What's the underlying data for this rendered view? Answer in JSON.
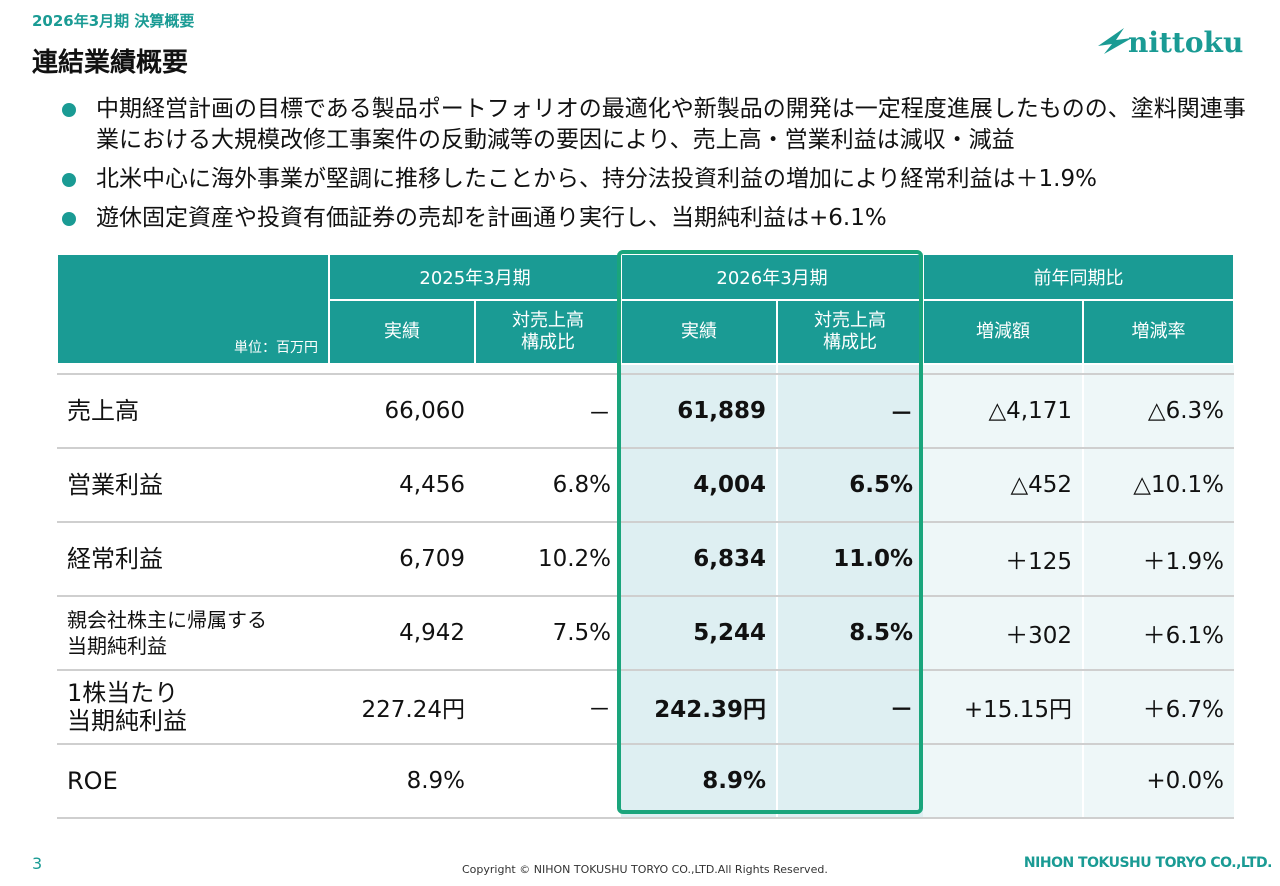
{
  "header": {
    "period": "2026年3月期 決算概要",
    "title": "連結業績概要",
    "logo_text": "nittoku"
  },
  "bullets": [
    "中期経営計画の目標である製品ポートフォリオの最適化や新製品の開発は一定程度進展したものの、塗料関連事業における大規模改修工事案件の反動減等の要因により、売上高・営業利益は減収・減益",
    "北米中心に海外事業が堅調に推移したことから、持分法投資利益の増加により経常利益は＋1.9%",
    "遊休固定資産や投資有価証券の売却を計画通り実行し、当期純利益は+6.1%"
  ],
  "table": {
    "unit": "単位：百万円",
    "groups": [
      "2025年3月期",
      "2026年3月期",
      "前年同期比"
    ],
    "subheaders": {
      "actual": "実績",
      "ratio_line1": "対売上高",
      "ratio_line2": "構成比",
      "diff": "増減額",
      "rate": "増減率"
    },
    "rows": [
      {
        "label": "売上高",
        "prev": "66,060",
        "prev_ratio": "－",
        "cur": "61,889",
        "cur_ratio": "－",
        "diff": "△4,171",
        "rate": "△6.3%"
      },
      {
        "label": "営業利益",
        "prev": "4,456",
        "prev_ratio": "6.8%",
        "cur": "4,004",
        "cur_ratio": "6.5%",
        "diff": "△452",
        "rate": "△10.1%"
      },
      {
        "label": "経常利益",
        "prev": "6,709",
        "prev_ratio": "10.2%",
        "cur": "6,834",
        "cur_ratio": "11.0%",
        "diff": "＋125",
        "rate": "＋1.9%"
      },
      {
        "label_line1": "親会社株主に帰属する",
        "label_line2": "当期純利益",
        "prev": "4,942",
        "prev_ratio": "7.5%",
        "cur": "5,244",
        "cur_ratio": "8.5%",
        "diff": "＋302",
        "rate": "＋6.1%"
      },
      {
        "label_line1": "1株当たり",
        "label_line2": "当期純利益",
        "prev": "227.24円",
        "prev_ratio": "－",
        "cur": "242.39円",
        "cur_ratio": "－",
        "diff": "+15.15円",
        "rate": "＋6.7%"
      },
      {
        "label": "ROE",
        "prev": "8.9%",
        "prev_ratio": "",
        "cur": "8.9%",
        "cur_ratio": "",
        "diff": "",
        "rate": "+0.0%"
      }
    ]
  },
  "footer": {
    "page": "3",
    "copyright": "Copyright © NIHON TOKUSHU TORYO CO.,LTD.All Rights Reserved.",
    "company": "NIHON TOKUSHU TORYO CO.,LTD."
  },
  "colors": {
    "accent": "#1a9b94",
    "highlight_frame": "#1aa57c",
    "highlight_bg": "#deeff2"
  }
}
